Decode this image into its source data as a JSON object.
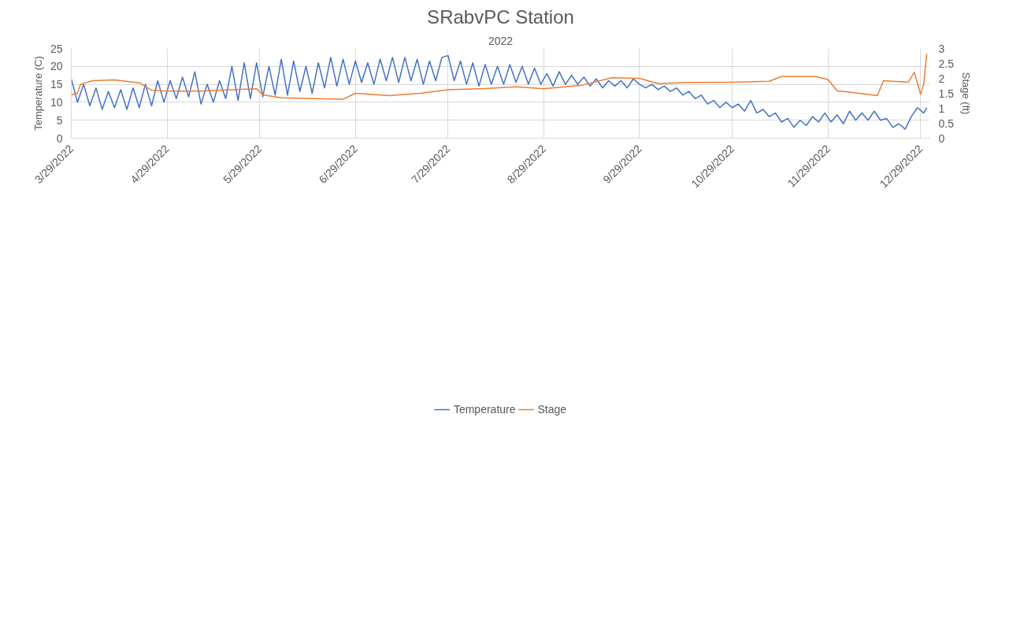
{
  "chart_data": {
    "type": "line",
    "title": "SRabvPC Station",
    "subtitle": "2022",
    "ylabel": "Temperature (C)",
    "y2label": "Stage (ft)",
    "xlim": [
      "2022-03-29",
      "2023-01-01"
    ],
    "xticks": [
      {
        "value": "2022-03-29",
        "label": "3/29/2022"
      },
      {
        "value": "2022-04-29",
        "label": "4/29/2022"
      },
      {
        "value": "2022-05-29",
        "label": "5/29/2022"
      },
      {
        "value": "2022-06-29",
        "label": "6/29/2022"
      },
      {
        "value": "2022-07-29",
        "label": "7/29/2022"
      },
      {
        "value": "2022-08-29",
        "label": "8/29/2022"
      },
      {
        "value": "2022-09-29",
        "label": "9/29/2022"
      },
      {
        "value": "2022-10-29",
        "label": "10/29/2022"
      },
      {
        "value": "2022-11-29",
        "label": "11/29/2022"
      },
      {
        "value": "2022-12-29",
        "label": "12/29/2022"
      }
    ],
    "ylim": [
      0,
      25
    ],
    "yticks": [
      0,
      5,
      10,
      15,
      20,
      25
    ],
    "y2lim": [
      0,
      3
    ],
    "y2ticks": [
      0,
      0.5,
      1,
      1.5,
      2,
      2.5,
      3
    ],
    "grid": true,
    "legend": "bottom",
    "marker": "none",
    "line_style": "solid",
    "series": [
      {
        "name": "Temperature",
        "color": "#4472c4",
        "x": [
          "2022-03-29",
          "2022-03-31",
          "2022-04-02",
          "2022-04-04",
          "2022-04-06",
          "2022-04-08",
          "2022-04-10",
          "2022-04-12",
          "2022-04-14",
          "2022-04-16",
          "2022-04-18",
          "2022-04-20",
          "2022-04-22",
          "2022-04-24",
          "2022-04-26",
          "2022-04-28",
          "2022-04-30",
          "2022-05-02",
          "2022-05-04",
          "2022-05-06",
          "2022-05-08",
          "2022-05-10",
          "2022-05-12",
          "2022-05-14",
          "2022-05-16",
          "2022-05-18",
          "2022-05-20",
          "2022-05-22",
          "2022-05-24",
          "2022-05-26",
          "2022-05-28",
          "2022-05-30",
          "2022-06-01",
          "2022-06-03",
          "2022-06-05",
          "2022-06-07",
          "2022-06-09",
          "2022-06-11",
          "2022-06-13",
          "2022-06-15",
          "2022-06-17",
          "2022-06-19",
          "2022-06-21",
          "2022-06-23",
          "2022-06-25",
          "2022-06-27",
          "2022-06-29",
          "2022-07-01",
          "2022-07-03",
          "2022-07-05",
          "2022-07-07",
          "2022-07-09",
          "2022-07-11",
          "2022-07-13",
          "2022-07-15",
          "2022-07-17",
          "2022-07-19",
          "2022-07-21",
          "2022-07-23",
          "2022-07-25",
          "2022-07-27",
          "2022-07-29",
          "2022-07-31",
          "2022-08-02",
          "2022-08-04",
          "2022-08-06",
          "2022-08-08",
          "2022-08-10",
          "2022-08-12",
          "2022-08-14",
          "2022-08-16",
          "2022-08-18",
          "2022-08-20",
          "2022-08-22",
          "2022-08-24",
          "2022-08-26",
          "2022-08-28",
          "2022-08-30",
          "2022-09-01",
          "2022-09-03",
          "2022-09-05",
          "2022-09-07",
          "2022-09-09",
          "2022-09-11",
          "2022-09-13",
          "2022-09-15",
          "2022-09-17",
          "2022-09-19",
          "2022-09-21",
          "2022-09-23",
          "2022-09-25",
          "2022-09-27",
          "2022-09-29",
          "2022-10-01",
          "2022-10-03",
          "2022-10-05",
          "2022-10-07",
          "2022-10-09",
          "2022-10-11",
          "2022-10-13",
          "2022-10-15",
          "2022-10-17",
          "2022-10-19",
          "2022-10-21",
          "2022-10-23",
          "2022-10-25",
          "2022-10-27",
          "2022-10-29",
          "2022-10-31",
          "2022-11-02",
          "2022-11-04",
          "2022-11-06",
          "2022-11-08",
          "2022-11-10",
          "2022-11-12",
          "2022-11-14",
          "2022-11-16",
          "2022-11-18",
          "2022-11-20",
          "2022-11-22",
          "2022-11-24",
          "2022-11-26",
          "2022-11-28",
          "2022-11-30",
          "2022-12-02",
          "2022-12-04",
          "2022-12-06",
          "2022-12-08",
          "2022-12-10",
          "2022-12-12",
          "2022-12-14",
          "2022-12-16",
          "2022-12-18",
          "2022-12-20",
          "2022-12-22",
          "2022-12-24",
          "2022-12-26",
          "2022-12-28",
          "2022-12-30",
          "2022-12-31"
        ],
        "values": [
          16.5,
          10,
          15,
          9,
          14,
          8,
          13,
          8.5,
          13.5,
          8,
          14,
          8.5,
          15,
          9,
          16,
          10,
          16,
          11,
          17,
          11.5,
          18.5,
          9.5,
          15,
          10,
          16,
          11,
          20,
          10.5,
          21,
          11,
          21,
          11.5,
          20,
          12,
          22,
          12,
          21.5,
          13,
          20,
          12.5,
          21,
          14,
          22.5,
          14.5,
          22,
          15,
          21.5,
          15.5,
          21,
          15,
          22,
          16,
          22.5,
          15.5,
          22.5,
          16,
          22,
          15,
          21.5,
          16,
          22.5,
          23,
          16,
          21.5,
          15,
          21,
          14.5,
          20.5,
          15,
          20,
          15,
          20.5,
          15.5,
          20,
          15,
          19.5,
          15,
          18,
          14.5,
          18.5,
          15,
          17.5,
          15,
          17,
          14.5,
          16.5,
          14,
          16,
          14.5,
          16,
          14,
          16.5,
          15,
          14,
          15,
          13.5,
          14.5,
          13,
          14,
          12,
          13,
          11,
          12,
          9.5,
          10.5,
          8.5,
          10,
          8.5,
          9.5,
          7.5,
          10.5,
          7,
          8,
          6,
          7,
          4.5,
          5.5,
          3,
          5,
          3.5,
          6,
          4.5,
          7,
          4.5,
          6.5,
          4,
          7.5,
          5,
          7,
          5,
          7.5,
          5,
          5.5,
          3,
          4,
          2.5,
          6,
          8.5,
          7,
          8.5
        ]
      },
      {
        "name": "Stage",
        "color": "#ed7d31",
        "axis": "y2",
        "x": [
          "2022-03-29",
          "2022-03-31",
          "2022-04-01",
          "2022-04-05",
          "2022-04-12",
          "2022-04-20",
          "2022-04-24",
          "2022-04-29",
          "2022-05-10",
          "2022-05-20",
          "2022-05-28",
          "2022-05-30",
          "2022-06-05",
          "2022-06-15",
          "2022-06-25",
          "2022-06-29",
          "2022-07-10",
          "2022-07-20",
          "2022-07-29",
          "2022-08-10",
          "2022-08-20",
          "2022-08-29",
          "2022-09-10",
          "2022-09-20",
          "2022-09-29",
          "2022-10-05",
          "2022-10-15",
          "2022-10-29",
          "2022-11-10",
          "2022-11-14",
          "2022-11-25",
          "2022-11-29",
          "2022-12-02",
          "2022-12-05",
          "2022-12-15",
          "2022-12-17",
          "2022-12-25",
          "2022-12-27",
          "2022-12-29",
          "2022-12-30",
          "2022-12-31"
        ],
        "values": [
          1.45,
          1.5,
          1.8,
          1.92,
          1.95,
          1.85,
          1.6,
          1.57,
          1.57,
          1.62,
          1.65,
          1.45,
          1.35,
          1.32,
          1.3,
          1.5,
          1.42,
          1.5,
          1.62,
          1.66,
          1.72,
          1.65,
          1.76,
          2.02,
          2.0,
          1.82,
          1.86,
          1.87,
          1.9,
          2.06,
          2.06,
          1.96,
          1.58,
          1.55,
          1.42,
          1.92,
          1.87,
          2.2,
          1.47,
          1.8,
          2.82
        ]
      }
    ]
  }
}
